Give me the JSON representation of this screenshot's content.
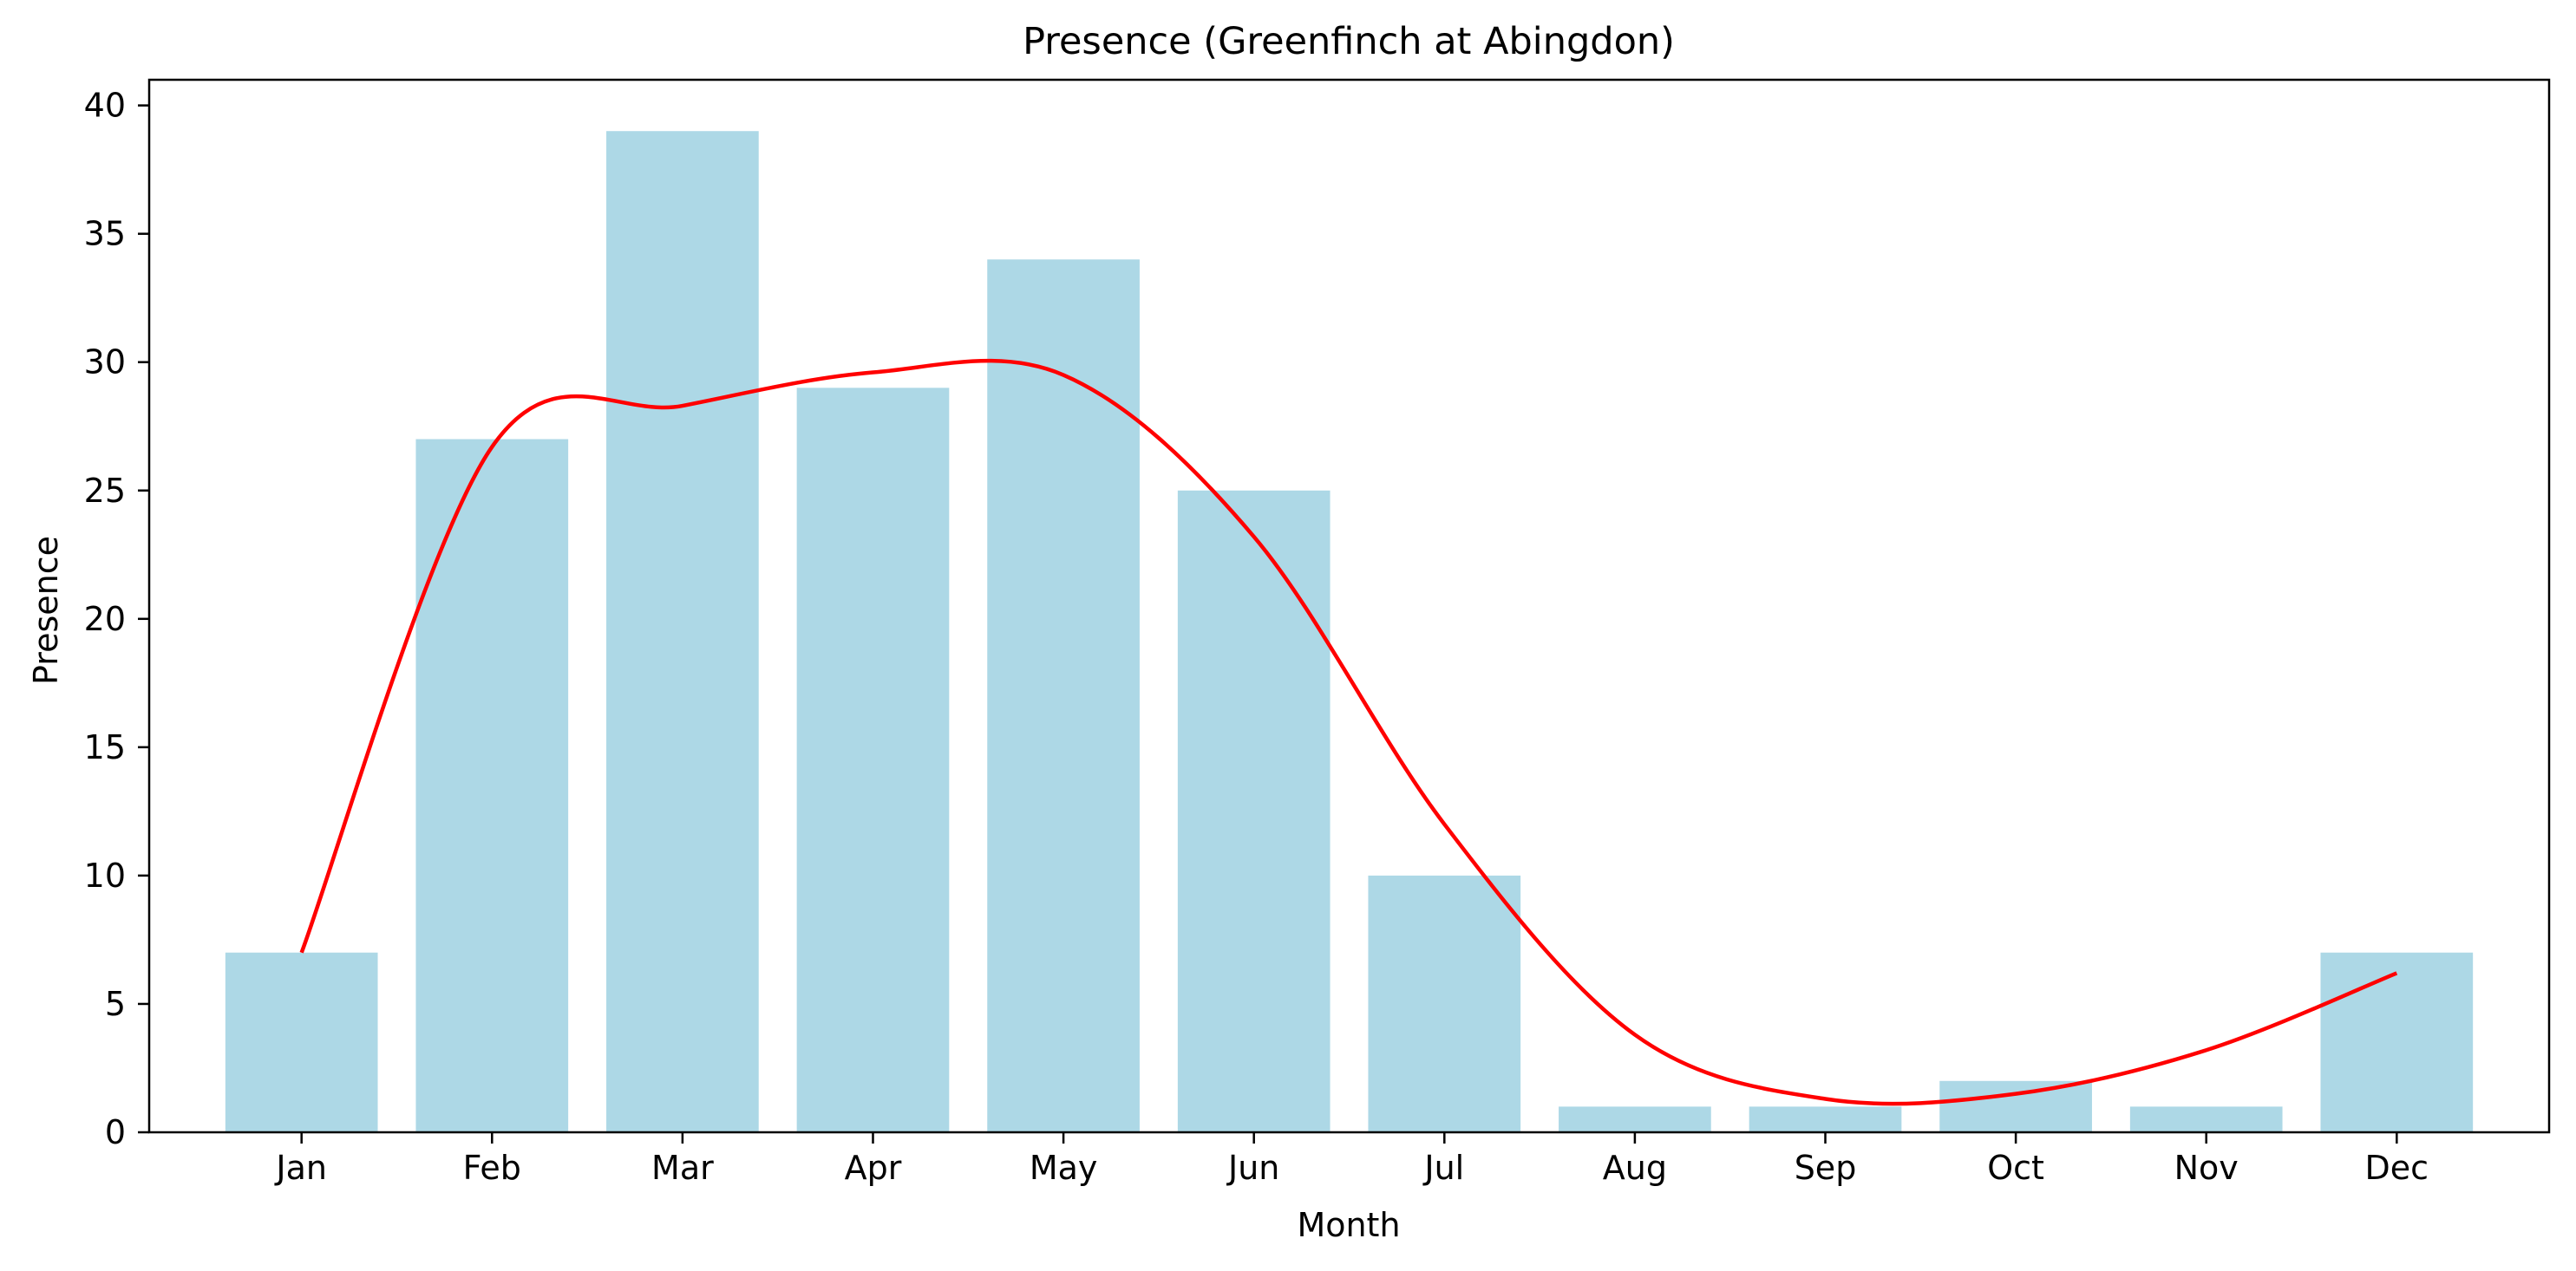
{
  "chart_data": {
    "type": "bar",
    "title": "Presence (Greenfinch at Abingdon)",
    "xlabel": "Month",
    "ylabel": "Presence",
    "categories": [
      "Jan",
      "Feb",
      "Mar",
      "Apr",
      "May",
      "Jun",
      "Jul",
      "Aug",
      "Sep",
      "Oct",
      "Nov",
      "Dec"
    ],
    "values": [
      7,
      27,
      39,
      29,
      34,
      25,
      10,
      1,
      1,
      2,
      1,
      7
    ],
    "trend": [
      7.0,
      26.7,
      28.3,
      29.6,
      29.5,
      23.2,
      12.0,
      3.8,
      1.3,
      1.5,
      3.2,
      6.2
    ],
    "ylim": [
      0,
      41
    ],
    "yticks": [
      0,
      5,
      10,
      15,
      20,
      25,
      30,
      35,
      40
    ],
    "bar_color": "#add8e6",
    "line_color": "#ff0000",
    "grid": false,
    "legend": "none"
  }
}
